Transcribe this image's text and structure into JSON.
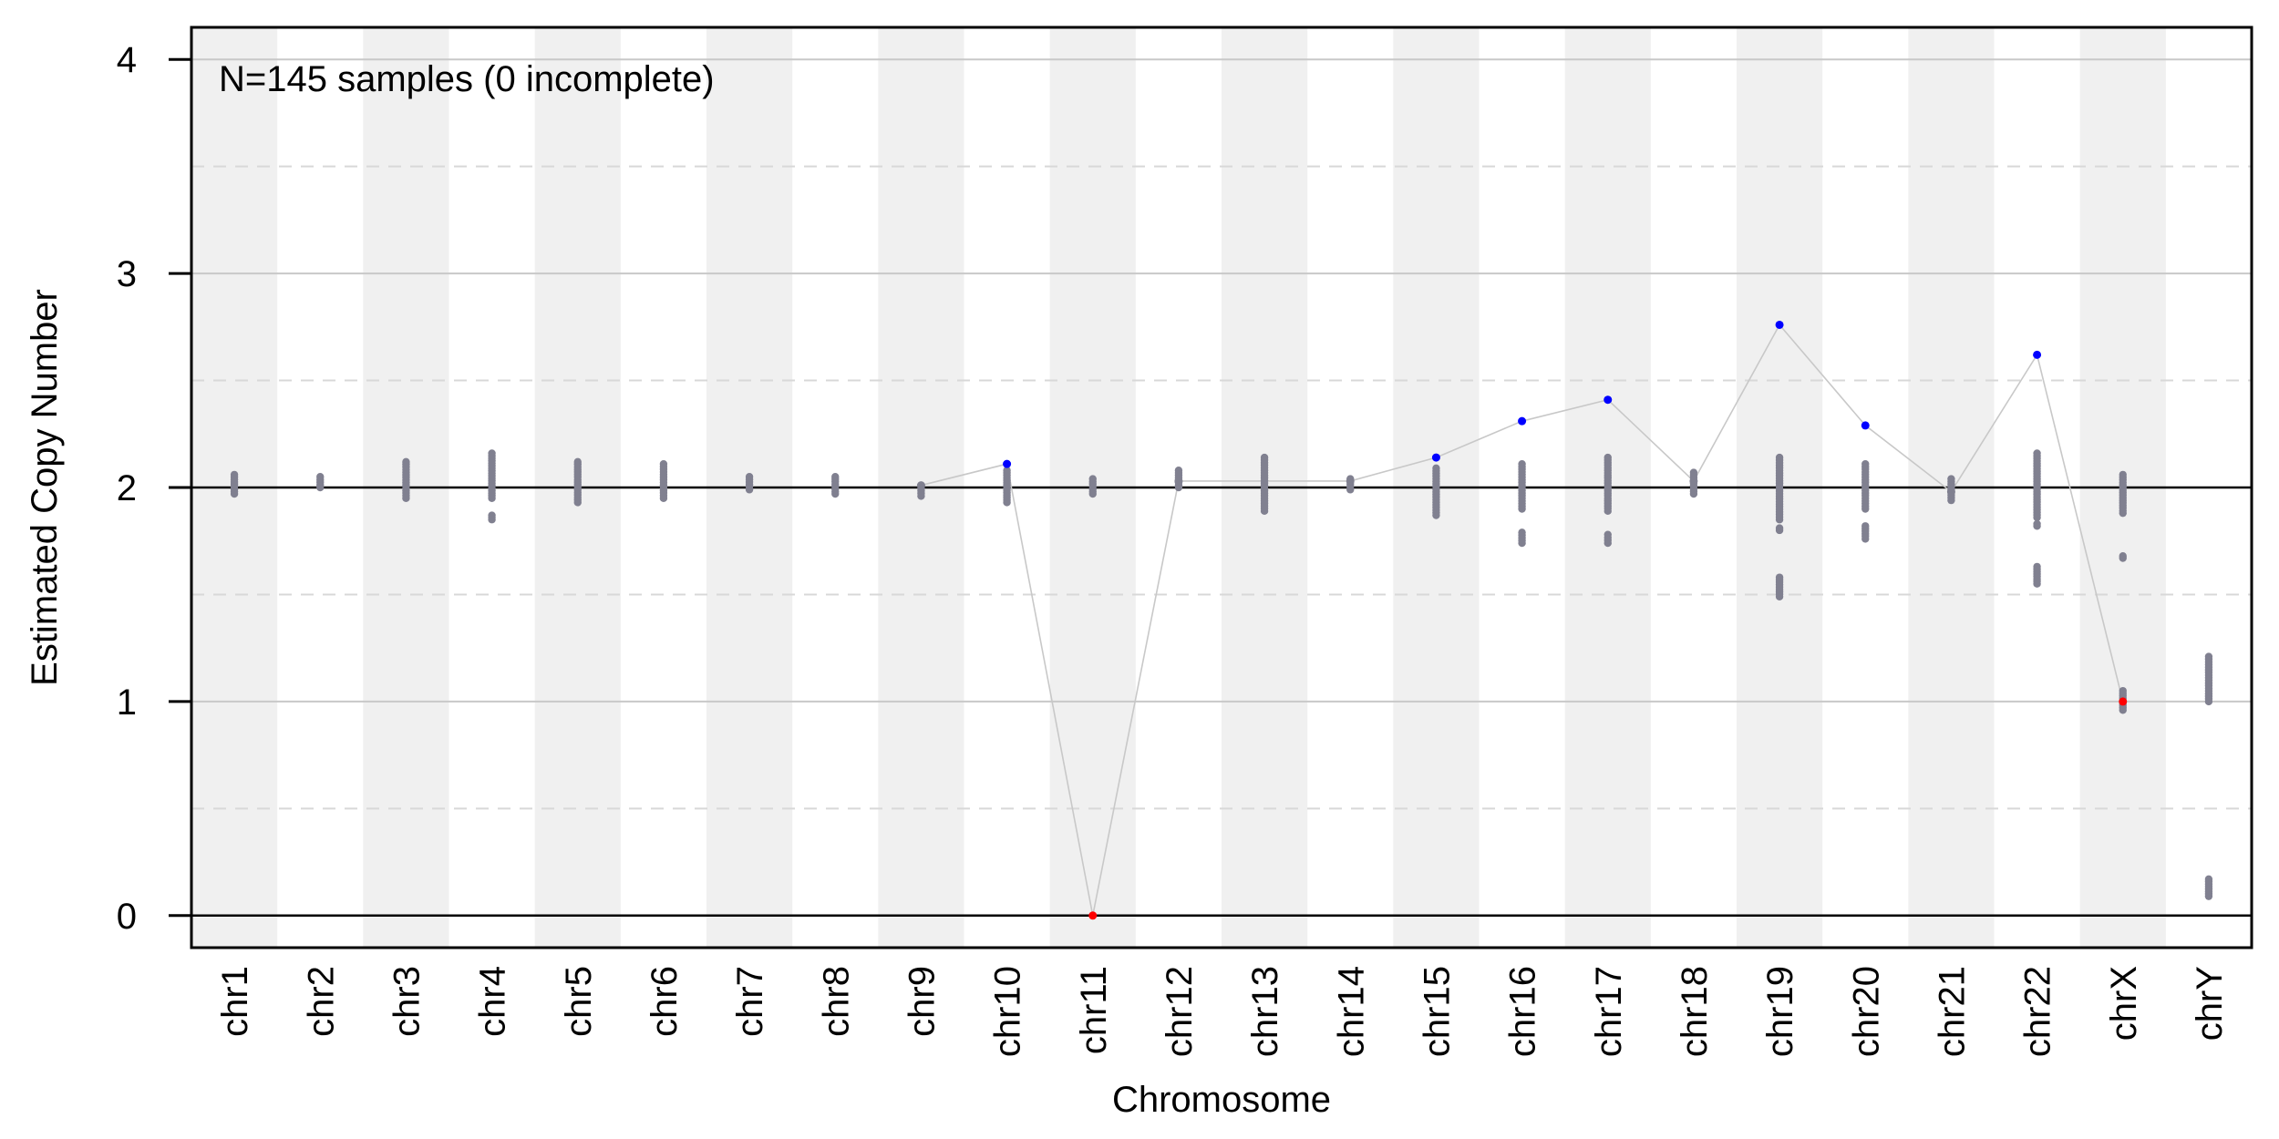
{
  "chart_data": {
    "type": "scatter",
    "title": "",
    "annotation": "N=145 samples (0 incomplete)",
    "xlabel": "Chromosome",
    "ylabel": "Estimated Copy Number",
    "ylim": [
      -0.15,
      4.15
    ],
    "yticks": [
      0,
      1,
      2,
      3,
      4
    ],
    "minor_gridlines": [
      0.5,
      1.5,
      2.5,
      3.5
    ],
    "reference_lines": [
      0,
      2
    ],
    "alternating_column_shading": true,
    "categories": [
      "chr1",
      "chr2",
      "chr3",
      "chr4",
      "chr5",
      "chr6",
      "chr7",
      "chr8",
      "chr9",
      "chr10",
      "chr11",
      "chr12",
      "chr13",
      "chr14",
      "chr15",
      "chr16",
      "chr17",
      "chr18",
      "chr19",
      "chr20",
      "chr21",
      "chr22",
      "chrX",
      "chrY"
    ],
    "series": [
      {
        "role": "all-samples",
        "color": "#808090",
        "ranges": [
          [
            [
              1.97,
              2.06
            ]
          ],
          [
            [
              2.0,
              2.05
            ]
          ],
          [
            [
              1.95,
              2.12
            ]
          ],
          [
            [
              1.95,
              2.16
            ],
            [
              1.85,
              1.87
            ]
          ],
          [
            [
              1.93,
              2.12
            ]
          ],
          [
            [
              1.95,
              2.11
            ]
          ],
          [
            [
              1.99,
              2.05
            ]
          ],
          [
            [
              1.97,
              2.05
            ]
          ],
          [
            [
              1.96,
              2.01
            ]
          ],
          [
            [
              1.93,
              2.08
            ]
          ],
          [
            [
              1.97,
              2.04
            ]
          ],
          [
            [
              2.0,
              2.08
            ]
          ],
          [
            [
              1.89,
              2.14
            ]
          ],
          [
            [
              1.99,
              2.04
            ]
          ],
          [
            [
              1.87,
              2.09
            ]
          ],
          [
            [
              1.9,
              2.11
            ],
            [
              1.74,
              1.79
            ]
          ],
          [
            [
              1.89,
              2.14
            ],
            [
              1.74,
              1.78
            ]
          ],
          [
            [
              1.97,
              2.07
            ]
          ],
          [
            [
              1.85,
              2.14
            ],
            [
              1.8,
              1.81
            ],
            [
              1.49,
              1.58
            ]
          ],
          [
            [
              1.9,
              2.11
            ],
            [
              1.76,
              1.82
            ]
          ],
          [
            [
              1.94,
              2.04
            ]
          ],
          [
            [
              1.86,
              2.16
            ],
            [
              1.82,
              1.83
            ],
            [
              1.55,
              1.63
            ]
          ],
          [
            [
              1.88,
              2.06
            ],
            [
              1.67,
              1.68
            ],
            [
              0.96,
              1.05
            ]
          ],
          [
            [
              1.0,
              1.21
            ],
            [
              0.09,
              0.17
            ]
          ]
        ]
      },
      {
        "role": "highlighted-sample",
        "color_gain": "#0000ff",
        "color_loss": "#ff0000",
        "color_neutral": "#808090",
        "line_color": "#c8c8c8",
        "neutral_range": [
          1.9,
          2.1
        ],
        "values": [
          null,
          null,
          null,
          null,
          null,
          null,
          null,
          null,
          2.01,
          2.11,
          0.0,
          2.03,
          null,
          2.03,
          2.14,
          2.31,
          2.41,
          2.03,
          2.76,
          2.29,
          1.98,
          2.62,
          1.0,
          null
        ]
      }
    ]
  }
}
